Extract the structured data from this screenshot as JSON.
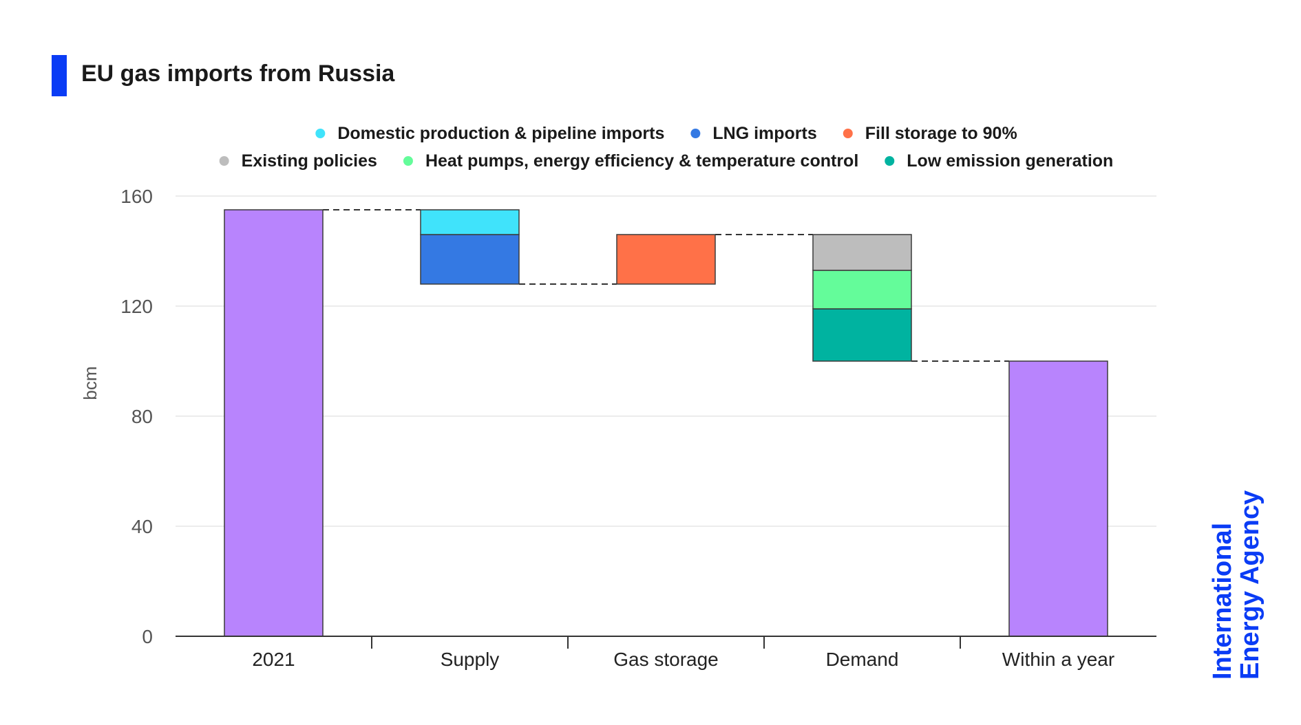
{
  "title": "EU gas imports from Russia",
  "logo": {
    "line1": "International",
    "line2": "Energy Agency"
  },
  "chart_data": {
    "type": "bar",
    "subtype": "waterfall",
    "ylabel": "bcm",
    "ylim": [
      0,
      160
    ],
    "yticks": [
      0,
      40,
      80,
      120,
      160
    ],
    "grid": true,
    "legend_position": "top",
    "categories": [
      "2021",
      "Supply",
      "Gas storage",
      "Demand",
      "Within a year"
    ],
    "legend": [
      {
        "name": "Domestic production & pipeline imports",
        "color": "#40e3fb"
      },
      {
        "name": "LNG imports",
        "color": "#3479e3"
      },
      {
        "name": "Fill storage to 90%",
        "color": "#ff7148"
      },
      {
        "name": "Existing policies",
        "color": "#bdbdbd"
      },
      {
        "name": "Heat pumps, energy efficiency & temperature control",
        "color": "#64fc9a"
      },
      {
        "name": "Low emission generation",
        "color": "#00b3a0"
      }
    ],
    "bars": [
      {
        "category": "2021",
        "segments": [
          {
            "series": "",
            "from": 0,
            "to": 155,
            "color": "#b884fd"
          }
        ]
      },
      {
        "category": "Supply",
        "segments": [
          {
            "series": "LNG imports",
            "from": 128,
            "to": 146,
            "color": "#3479e3"
          },
          {
            "series": "Domestic production & pipeline imports",
            "from": 146,
            "to": 155,
            "color": "#40e3fb"
          }
        ]
      },
      {
        "category": "Gas storage",
        "segments": [
          {
            "series": "Fill storage to 90%",
            "from": 128,
            "to": 146,
            "color": "#ff7148"
          }
        ]
      },
      {
        "category": "Demand",
        "segments": [
          {
            "series": "Low emission generation",
            "from": 100,
            "to": 119,
            "color": "#00b3a0"
          },
          {
            "series": "Heat pumps, energy efficiency & temperature control",
            "from": 119,
            "to": 133,
            "color": "#64fc9a"
          },
          {
            "series": "Existing policies",
            "from": 133,
            "to": 146,
            "color": "#bdbdbd"
          }
        ]
      },
      {
        "category": "Within a year",
        "segments": [
          {
            "series": "",
            "from": 0,
            "to": 100,
            "color": "#b884fd"
          }
        ]
      }
    ],
    "connectors": [
      {
        "from_bar": 0,
        "to_bar": 1,
        "value": 155
      },
      {
        "from_bar": 1,
        "to_bar": 2,
        "value": 128
      },
      {
        "from_bar": 2,
        "to_bar": 3,
        "value": 146
      },
      {
        "from_bar": 3,
        "to_bar": 4,
        "value": 100
      }
    ]
  }
}
